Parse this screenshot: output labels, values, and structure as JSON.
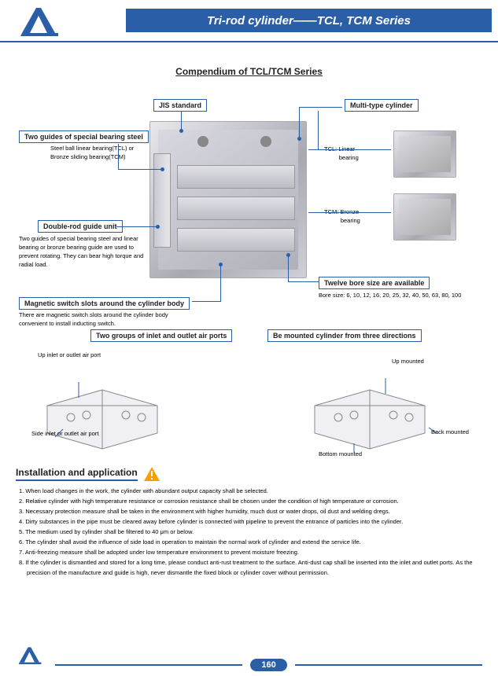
{
  "colors": {
    "accent": "#2a5fa8",
    "header_bg": "#2a5fa8",
    "header_text": "#ffffff",
    "box_border": "#2a5fa8",
    "leader": "#2a5fa8",
    "dot": "#2a5fa8",
    "footer_line": "#2a5fa8",
    "warning_fill": "#f7a000",
    "text_dark": "#222222",
    "subtitle_line": "#2a5fa8"
  },
  "header": {
    "title": "Tri-rod cylinder——TCL, TCM Series"
  },
  "subtitle": "Compendium of TCL/TCM Series",
  "callouts": {
    "jis": "JIS standard",
    "multi": "Multi-type cylinder",
    "guides": "Two guides of special bearing steel",
    "guides_sub": "Steel ball linear bearing(TCL) or\nBronze sliding bearing(TCM)",
    "doublerod": "Double-rod guide unit",
    "doublerod_sub": "Two guides of special bearing steel and linear bearing or bronze bearing guide are used to prevent rotating. They can bear high torque and radial load.",
    "magslot": "Magnetic switch slots around the cylinder body",
    "magslot_sub": "There are magnetic switch slots around the cylinder body convenient to install inducting switch.",
    "twogroups": "Two groups of inlet and outlet air ports",
    "mounted": "Be mounted cylinder from three directions",
    "twelve": "Twelve bore size are available",
    "twelve_sub": "Bore size: 6, 10, 12, 16, 20, 25, 32, 40, 50, 63, 80, 100",
    "tcl_label": "TCL: Linear\n         bearing",
    "tcm_label": "TCM: Bronze\n          bearing",
    "up_inlet": "Up inlet or outlet air port",
    "side_inlet": "Side inlet or outlet air port",
    "up_mount": "Up mounted",
    "back_mount": "Back mounted",
    "bottom_mount": "Bottom mounted"
  },
  "installation": {
    "title": "Installation and application",
    "notes": [
      "1. When load changes in the work, the cylinder with abundant output capacity shall be selected.",
      "2. Relative cylinder with high temperature resistance or corrosion resistance shall be chosen under the condition of high temperature or corrosion.",
      "3. Necessary protection measure shall be taken in the environment with higher humidity, much dust or water drops, oil dust and welding dregs.",
      "4. Dirty substances in the pipe must be cleared away before cylinder is connected with pipeline to prevent the entrance of particles into the cylinder.",
      "5. The medium used by cylinder shall be filtered to 40 μm or below.",
      "6. The cylinder shall avoid the influence of side load in operation to maintain the normal work of cylinder and extend the service life.",
      "7. Anti-freezing measure shall be adopted under low temperature environment to prevent moisture freezing.",
      "8. If the cylinder is dismantled and stored for a long time, please conduct anti-rust treatment to the surface. Anti-dust cap shall be inserted into the inlet and outlet ports. As the precision of the manufacture and  guide is high, never dismantle the fixed block or cylinder cover without permission."
    ]
  },
  "page_number": "160"
}
